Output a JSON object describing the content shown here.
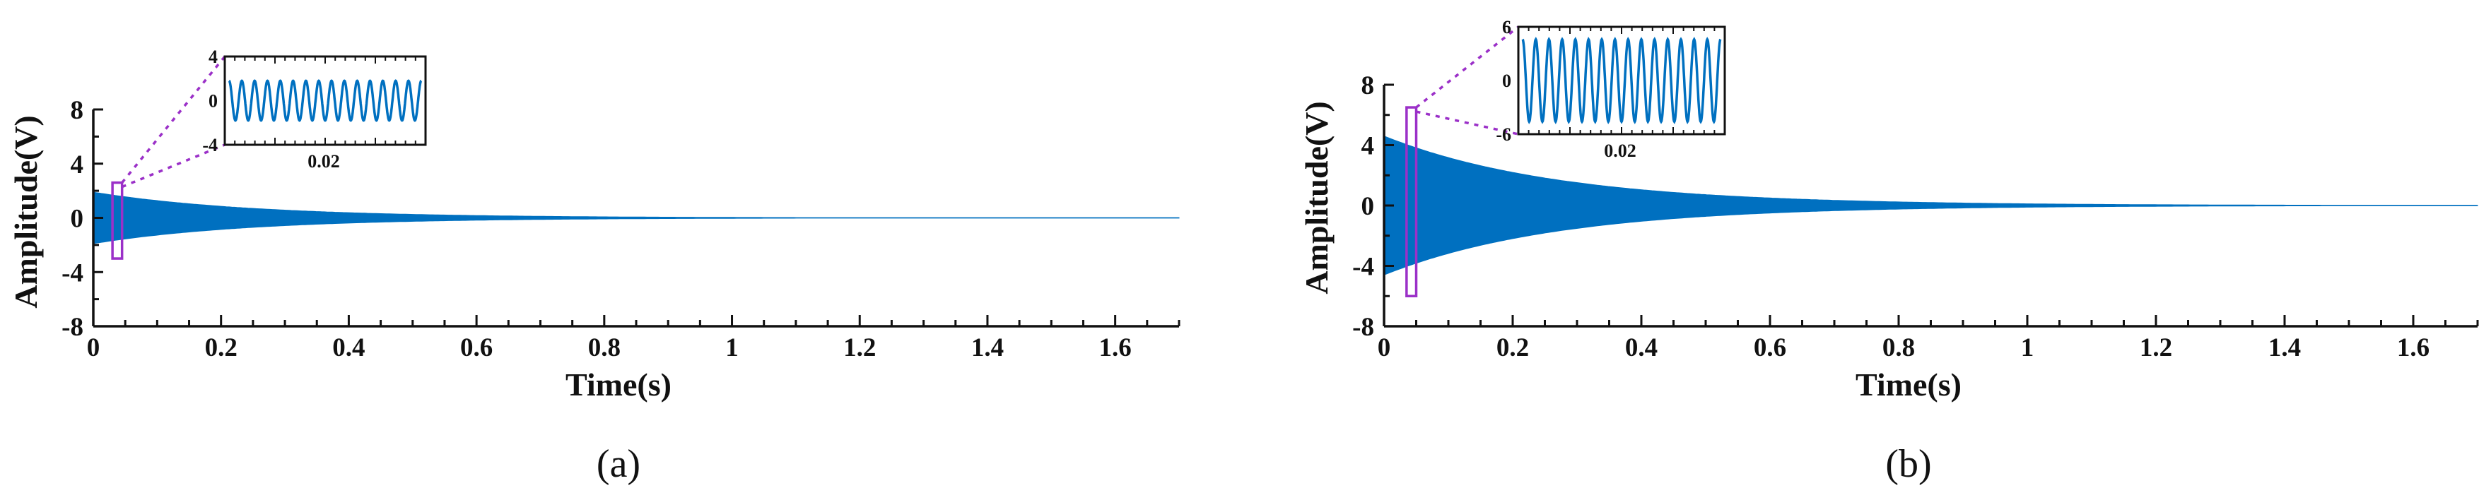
{
  "chart_data": [
    {
      "type": "line",
      "panel_label": "(a)",
      "xlabel": "Time(s)",
      "ylabel": "Amplitude(V)",
      "xlim": [
        0,
        1.7
      ],
      "ylim": [
        -8,
        8
      ],
      "x_ticks": [
        "0",
        "0.2",
        "0.4",
        "0.6",
        "0.8",
        "1",
        "1.2",
        "1.4",
        "1.6"
      ],
      "y_ticks": [
        "8",
        "4",
        "0",
        "-4",
        "-8"
      ],
      "series": [
        {
          "peak_amplitude": 1.9,
          "decay_time_constant": 0.25,
          "color": "#0070c0"
        }
      ],
      "zoom_window": {
        "x": [
          0.03,
          0.045
        ],
        "y": [
          -3,
          2.6
        ]
      },
      "inset": {
        "ylim": [
          -4,
          4
        ],
        "y_ticks": [
          "4",
          "0",
          "-4"
        ],
        "x_ticks": [
          "0.02"
        ],
        "amplitude": 1.8,
        "cycles": 15
      }
    },
    {
      "type": "line",
      "panel_label": "(b)",
      "xlabel": "Time(s)",
      "ylabel": "Amplitude(V)",
      "xlim": [
        0,
        1.7
      ],
      "ylim": [
        -8,
        8
      ],
      "x_ticks": [
        "0",
        "0.2",
        "0.4",
        "0.6",
        "0.8",
        "1",
        "1.2",
        "1.4",
        "1.6"
      ],
      "y_ticks": [
        "8",
        "4",
        "0",
        "-4",
        "-8"
      ],
      "series": [
        {
          "peak_amplitude": 4.6,
          "decay_time_constant": 0.27,
          "color": "#0070c0"
        }
      ],
      "zoom_window": {
        "x": [
          0.035,
          0.05
        ],
        "y": [
          -6,
          6.5
        ]
      },
      "inset": {
        "ylim": [
          -6,
          6
        ],
        "y_ticks": [
          "6",
          "0",
          "-6"
        ],
        "x_ticks": [
          "0.02"
        ],
        "amplitude": 4.6,
        "cycles": 15
      }
    }
  ],
  "colors": {
    "signal": "#0070c0",
    "zoom": "#9b30c8",
    "axis": "#111111"
  }
}
